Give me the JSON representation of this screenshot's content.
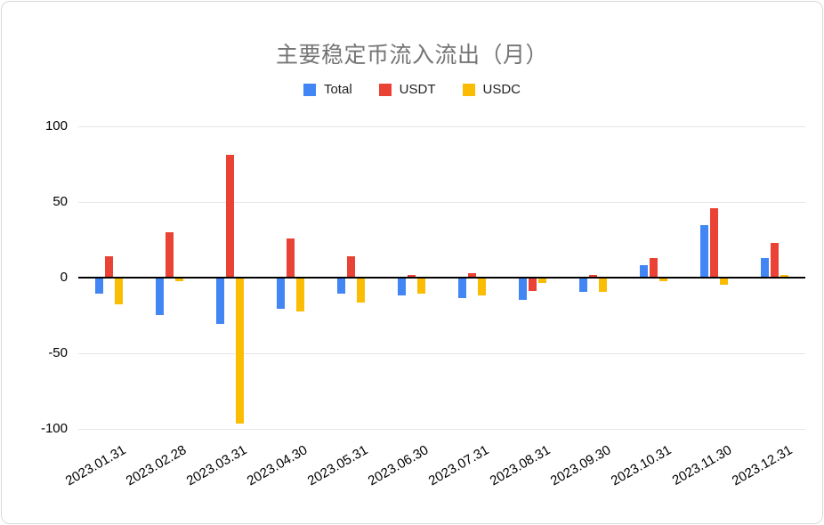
{
  "chart_data": {
    "type": "bar",
    "title": "主要稳定币流入流出（月）",
    "categories": [
      "2023.01.31",
      "2023.02.28",
      "2023.03.31",
      "2023.04.30",
      "2023.05.31",
      "2023.06.30",
      "2023.07.31",
      "2023.08.31",
      "2023.09.30",
      "2023.10.31",
      "2023.11.30",
      "2023.12.31"
    ],
    "series": [
      {
        "name": "Total",
        "color": "#4285F4",
        "values": [
          -10,
          -24,
          -30,
          -20,
          -10,
          -11,
          -13,
          -14,
          -9,
          8,
          35,
          13
        ]
      },
      {
        "name": "USDT",
        "color": "#EA4335",
        "values": [
          14,
          30,
          81,
          26,
          14,
          2,
          3,
          -8,
          2,
          13,
          46,
          23
        ]
      },
      {
        "name": "USDC",
        "color": "#FBBC04",
        "values": [
          -17,
          -2,
          -96,
          -22,
          -16,
          -10,
          -11,
          -3,
          -9,
          -2,
          -4,
          2
        ]
      }
    ],
    "ylim": [
      -100,
      100
    ],
    "yticks": [
      100,
      50,
      0,
      -50,
      -100
    ],
    "grid": true,
    "legend_position": "top",
    "xlabel": "",
    "ylabel": ""
  }
}
